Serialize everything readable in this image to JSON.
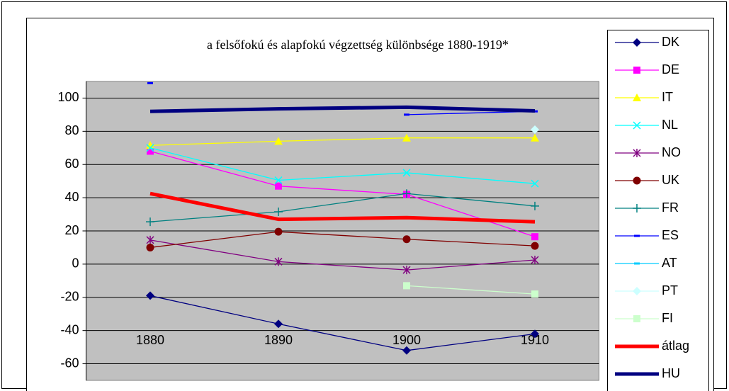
{
  "chart_data": {
    "type": "line",
    "title": "a felsőfokú és alapfokú végzettség különbsége 1880-1919*",
    "categories": [
      "1880",
      "1890",
      "1900",
      "1910"
    ],
    "ylim": [
      -70,
      110
    ],
    "yticks": [
      -60,
      -40,
      -20,
      0,
      20,
      40,
      60,
      80,
      100
    ],
    "grid": true,
    "plot_background": "#c0c0c0",
    "legend": "right",
    "series": [
      {
        "name": "DK",
        "color": "#000080",
        "marker": "diamond",
        "values": [
          -19,
          -36,
          -52,
          -42
        ]
      },
      {
        "name": "DE",
        "color": "#ff00ff",
        "marker": "square",
        "values": [
          68,
          47,
          42,
          16.5
        ]
      },
      {
        "name": "IT",
        "color": "#ffff00",
        "marker": "triangle",
        "values": [
          71.5,
          74,
          76,
          76
        ]
      },
      {
        "name": "NL",
        "color": "#00ffff",
        "marker": "x",
        "values": [
          70,
          50.5,
          55,
          48.5
        ]
      },
      {
        "name": "NO",
        "color": "#800080",
        "marker": "star",
        "values": [
          14.5,
          1.5,
          -3.5,
          2.5
        ]
      },
      {
        "name": "UK",
        "color": "#800000",
        "marker": "circle",
        "values": [
          10,
          19.5,
          15,
          11
        ]
      },
      {
        "name": "FR",
        "color": "#008080",
        "marker": "plus",
        "values": [
          25.5,
          31.5,
          42.5,
          35
        ]
      },
      {
        "name": "ES",
        "color": "#0000ff",
        "marker": "dash",
        "values": [
          109,
          null,
          90,
          92
        ]
      },
      {
        "name": "AT",
        "color": "#00ccff",
        "marker": "dash",
        "values": [
          null,
          null,
          null,
          -19
        ]
      },
      {
        "name": "PT",
        "color": "#ccffff",
        "marker": "diamond",
        "values": [
          null,
          null,
          null,
          81
        ]
      },
      {
        "name": "FI",
        "color": "#ccffcc",
        "marker": "square",
        "values": [
          null,
          null,
          -13,
          -18
        ]
      },
      {
        "name": "átlag",
        "color": "#ff0000",
        "marker": "none",
        "line_width": 5,
        "values": [
          42.5,
          27,
          28,
          25.5
        ]
      },
      {
        "name": "HU",
        "color": "#000080",
        "marker": "none",
        "line_width": 5,
        "values": [
          92,
          93.5,
          94.5,
          92.3
        ]
      }
    ]
  }
}
